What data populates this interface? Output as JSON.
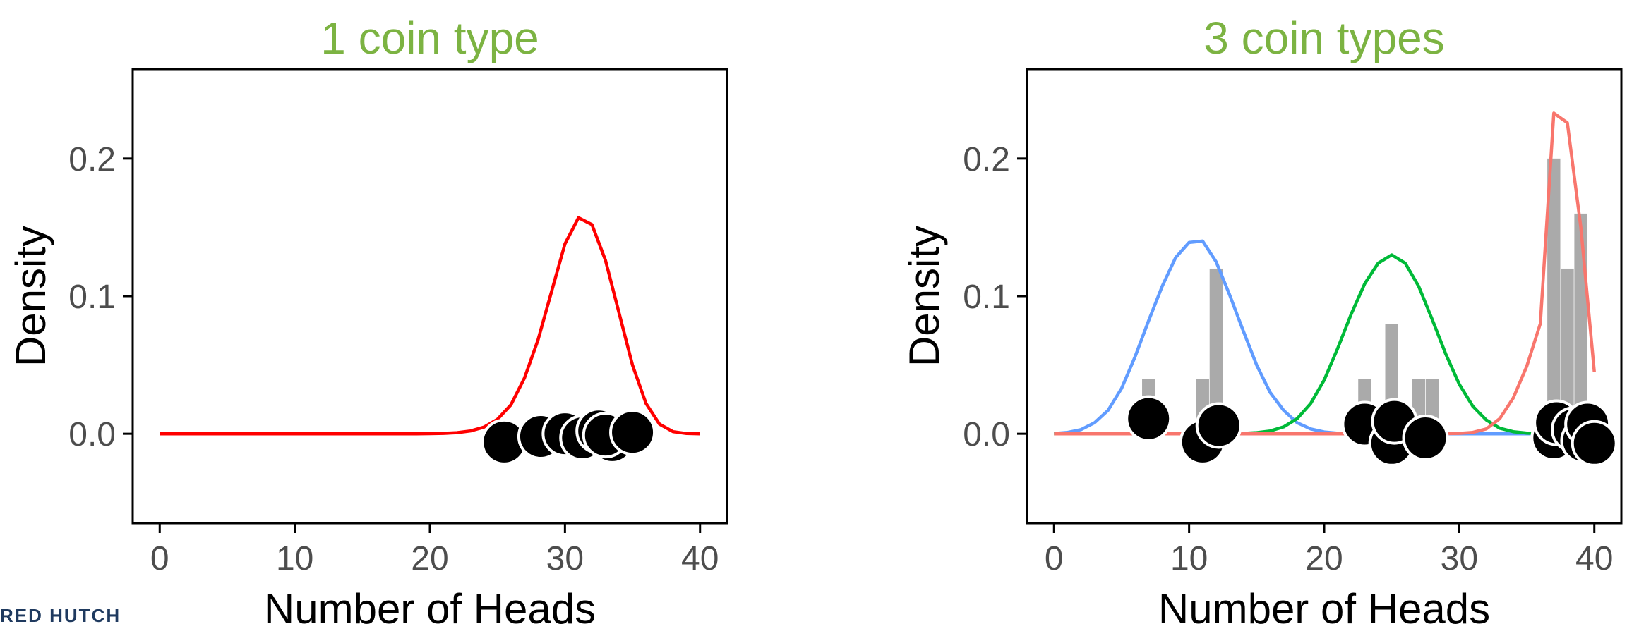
{
  "logo_text": "RED HUTCH",
  "colors": {
    "title": "#7cb342",
    "blue": "#619cff",
    "green": "#00ba38",
    "salmon": "#f8766d",
    "red": "#ff0000",
    "bar": "#aaaaaa",
    "axis": "#000000",
    "tick_text": "#4d4d4d"
  },
  "chart_data": [
    {
      "type": "line",
      "title": "1 coin type",
      "xlabel": "Number of Heads",
      "ylabel": "Density",
      "xlim": [
        -2,
        42
      ],
      "ylim": [
        -0.065,
        0.265
      ],
      "xticks": [
        0,
        10,
        20,
        30,
        40
      ],
      "yticks": [
        0.0,
        0.1,
        0.2
      ],
      "ytick_labels": [
        "0.0",
        "0.1",
        "0.2"
      ],
      "grid": false,
      "series": [
        {
          "color": "red",
          "x": [
            0,
            1,
            2,
            3,
            4,
            5,
            6,
            7,
            8,
            9,
            10,
            11,
            12,
            13,
            14,
            15,
            16,
            17,
            18,
            19,
            20,
            21,
            22,
            23,
            24,
            25,
            26,
            27,
            28,
            29,
            30,
            31,
            32,
            33,
            34,
            35,
            36,
            37,
            38,
            39,
            40
          ],
          "y": [
            0,
            0,
            0,
            0,
            0,
            0,
            0,
            0,
            0,
            0,
            0,
            0,
            0,
            0,
            0,
            0,
            0,
            0,
            0,
            0,
            0.0001,
            0.0003,
            0.0008,
            0.002,
            0.0048,
            0.0105,
            0.021,
            0.0405,
            0.068,
            0.103,
            0.138,
            0.157,
            0.152,
            0.126,
            0.088,
            0.05,
            0.022,
            0.007,
            0.0015,
            0.0002,
            0
          ]
        }
      ],
      "points": [
        [
          25.5,
          -0.006
        ],
        [
          28.2,
          -0.002
        ],
        [
          30.0,
          0.0
        ],
        [
          31.3,
          -0.003
        ],
        [
          32.5,
          0.002
        ],
        [
          33.5,
          -0.005
        ],
        [
          33.0,
          -0.001
        ],
        [
          35.0,
          0.001
        ]
      ],
      "bars": []
    },
    {
      "type": "line",
      "title": "3 coin types",
      "xlabel": "Number of Heads",
      "ylabel": "Density",
      "xlim": [
        -2,
        42
      ],
      "ylim": [
        -0.065,
        0.265
      ],
      "xticks": [
        0,
        10,
        20,
        30,
        40
      ],
      "yticks": [
        0.0,
        0.1,
        0.2
      ],
      "ytick_labels": [
        "0.0",
        "0.1",
        "0.2"
      ],
      "grid": false,
      "series": [
        {
          "color": "blue",
          "x": [
            0,
            1,
            2,
            3,
            4,
            5,
            6,
            7,
            8,
            9,
            10,
            11,
            12,
            13,
            14,
            15,
            16,
            17,
            18,
            19,
            20,
            21,
            22,
            23,
            24,
            25,
            26,
            27,
            28,
            29,
            30,
            31,
            32,
            33,
            34,
            35,
            36,
            37,
            38,
            39,
            40
          ],
          "y": [
            0.0002,
            0.001,
            0.003,
            0.008,
            0.017,
            0.033,
            0.056,
            0.082,
            0.107,
            0.128,
            0.139,
            0.14,
            0.125,
            0.101,
            0.075,
            0.05,
            0.03,
            0.017,
            0.008,
            0.0035,
            0.0013,
            0.0004,
            0.0001,
            0,
            0,
            0,
            0,
            0,
            0,
            0,
            0,
            0,
            0,
            0,
            0,
            0,
            0,
            0,
            0,
            0,
            0
          ]
        },
        {
          "color": "green",
          "x": [
            0,
            1,
            2,
            3,
            4,
            5,
            6,
            7,
            8,
            9,
            10,
            11,
            12,
            13,
            14,
            15,
            16,
            17,
            18,
            19,
            20,
            21,
            22,
            23,
            24,
            25,
            26,
            27,
            28,
            29,
            30,
            31,
            32,
            33,
            34,
            35,
            36,
            37,
            38,
            39,
            40
          ],
          "y": [
            0,
            0,
            0,
            0,
            0,
            0,
            0,
            0,
            0,
            0,
            0,
            0,
            0,
            0.0001,
            0.0003,
            0.0008,
            0.002,
            0.005,
            0.011,
            0.022,
            0.039,
            0.062,
            0.087,
            0.109,
            0.124,
            0.13,
            0.124,
            0.107,
            0.083,
            0.058,
            0.036,
            0.02,
            0.01,
            0.004,
            0.0015,
            0.0005,
            0.0001,
            0,
            0,
            0,
            0
          ]
        },
        {
          "color": "salmon",
          "x": [
            0,
            1,
            2,
            3,
            4,
            5,
            6,
            7,
            8,
            9,
            10,
            11,
            12,
            13,
            14,
            15,
            16,
            17,
            18,
            19,
            20,
            21,
            22,
            23,
            24,
            25,
            26,
            27,
            28,
            29,
            30,
            31,
            32,
            33,
            34,
            35,
            36,
            37,
            38,
            39,
            40
          ],
          "y": [
            0,
            0,
            0,
            0,
            0,
            0,
            0,
            0,
            0,
            0,
            0,
            0,
            0,
            0,
            0,
            0,
            0,
            0,
            0,
            0,
            0,
            0,
            0,
            0,
            0,
            0,
            0,
            0,
            0,
            0.0001,
            0.0003,
            0.001,
            0.0035,
            0.011,
            0.026,
            0.049,
            0.08,
            0.233,
            0.226,
            0.15,
            0.045
          ]
        }
      ],
      "bars": [
        {
          "x": 7,
          "y": 0.04
        },
        {
          "x": 11,
          "y": 0.04
        },
        {
          "x": 12,
          "y": 0.12
        },
        {
          "x": 23,
          "y": 0.04
        },
        {
          "x": 25,
          "y": 0.08
        },
        {
          "x": 27,
          "y": 0.04
        },
        {
          "x": 28,
          "y": 0.04
        },
        {
          "x": 37,
          "y": 0.2
        },
        {
          "x": 38,
          "y": 0.12
        },
        {
          "x": 39,
          "y": 0.16
        }
      ],
      "points": [
        [
          7.0,
          0.011
        ],
        [
          11.0,
          -0.006
        ],
        [
          12.2,
          0.006
        ],
        [
          23.0,
          0.007
        ],
        [
          25.0,
          -0.007
        ],
        [
          25.2,
          0.009
        ],
        [
          27.5,
          -0.003
        ],
        [
          37.0,
          -0.003
        ],
        [
          37.2,
          0.008
        ],
        [
          38.5,
          0.003
        ],
        [
          39.2,
          -0.005
        ],
        [
          39.5,
          0.007
        ],
        [
          40.0,
          -0.007
        ]
      ]
    }
  ]
}
